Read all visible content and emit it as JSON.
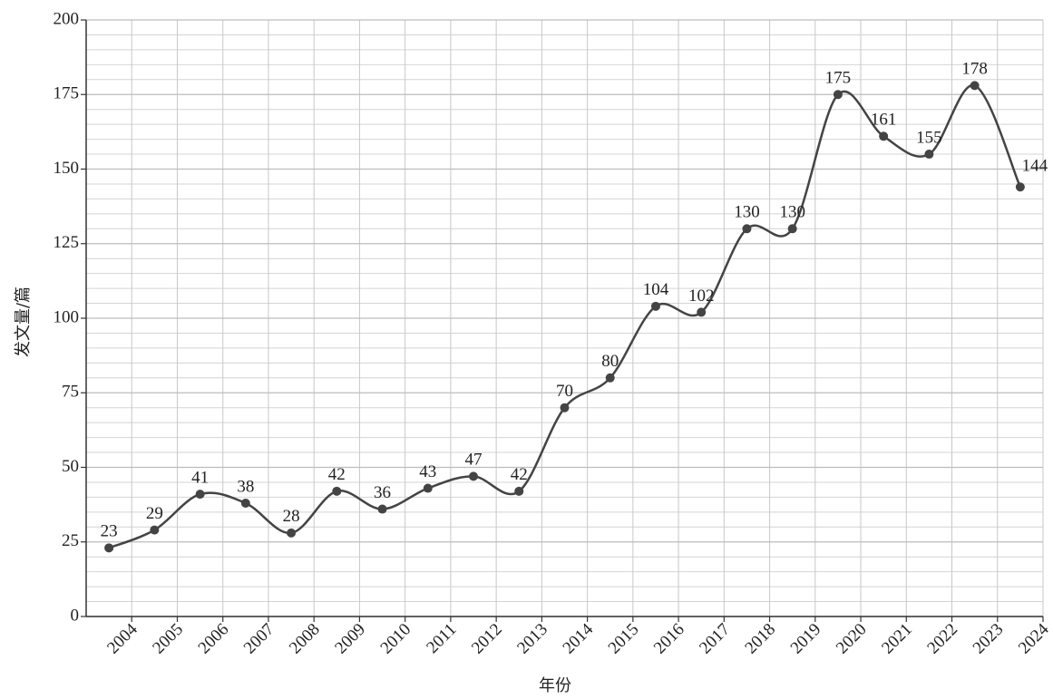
{
  "chart_data": {
    "type": "line",
    "x_label": "年份",
    "y_label": "发文量/篇",
    "categories": [
      "2004",
      "2005",
      "2006",
      "2007",
      "2008",
      "2009",
      "2010",
      "2011",
      "2012",
      "2013",
      "2014",
      "2015",
      "2016",
      "2017",
      "2018",
      "2019",
      "2020",
      "2021",
      "2022",
      "2023",
      "2024"
    ],
    "series": [
      {
        "color": "#444444",
        "values": [
          23,
          29,
          41,
          38,
          28,
          42,
          36,
          43,
          47,
          42,
          70,
          80,
          104,
          102,
          130,
          130,
          175,
          161,
          155,
          178,
          144
        ]
      }
    ],
    "ylim": [
      0,
      200
    ],
    "yticks": [
      0,
      25,
      50,
      75,
      100,
      125,
      150,
      175,
      200
    ],
    "grid": true,
    "minor_grid": true,
    "smooth": true,
    "data_labels": true
  }
}
